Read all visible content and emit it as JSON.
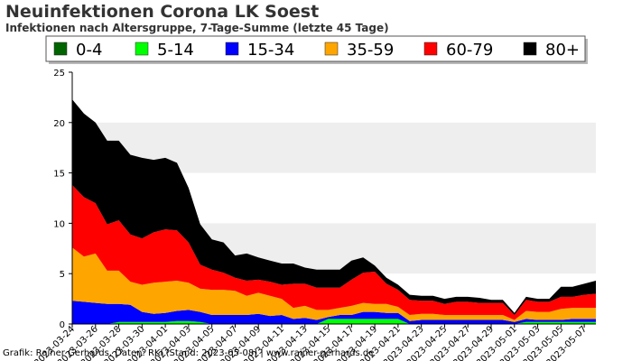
{
  "header": {
    "title": "Neuinfektionen Corona LK Soest",
    "subtitle": "Infektionen nach Altersgruppe, 7-Tage-Summe (letzte 45 Tage)"
  },
  "footer": {
    "credit": "Grafik: Rainer Gerhards, Daten: RKI (Stand: 2023-05-08) | www.rainer-gerhards.de"
  },
  "colors": {
    "0-4": "#006400",
    "5-14": "#00ff00",
    "15-34": "#0000ff",
    "35-59": "#ffa500",
    "60-79": "#ff0000",
    "80+": "#000000",
    "band": "#eeeeee"
  },
  "chart_data": {
    "type": "area",
    "stacked": true,
    "title": "Neuinfektionen Corona LK Soest",
    "subtitle": "Infektionen nach Altersgruppe, 7-Tage-Summe (letzte 45 Tage)",
    "xlabel": "",
    "ylabel": "",
    "ylim": [
      0,
      25
    ],
    "yticks": [
      0,
      5,
      10,
      15,
      20,
      25
    ],
    "grid": "alternating horizontal bands",
    "legend_position": "top",
    "x": [
      "2023-03-24",
      "2023-03-25",
      "2023-03-26",
      "2023-03-27",
      "2023-03-28",
      "2023-03-29",
      "2023-03-30",
      "2023-03-31",
      "2023-04-01",
      "2023-04-02",
      "2023-04-03",
      "2023-04-04",
      "2023-04-05",
      "2023-04-06",
      "2023-04-07",
      "2023-04-08",
      "2023-04-09",
      "2023-04-10",
      "2023-04-11",
      "2023-04-12",
      "2023-04-13",
      "2023-04-14",
      "2023-04-15",
      "2023-04-16",
      "2023-04-17",
      "2023-04-18",
      "2023-04-19",
      "2023-04-20",
      "2023-04-21",
      "2023-04-22",
      "2023-04-23",
      "2023-04-24",
      "2023-04-25",
      "2023-04-26",
      "2023-04-27",
      "2023-04-28",
      "2023-04-29",
      "2023-04-30",
      "2023-05-01",
      "2023-05-02",
      "2023-05-03",
      "2023-05-04",
      "2023-05-05",
      "2023-05-06",
      "2023-05-07",
      "2023-05-08"
    ],
    "xticks": [
      "2023-03-24",
      "2023-03-26",
      "2023-03-28",
      "2023-03-30",
      "2023-04-01",
      "2023-04-03",
      "2023-04-05",
      "2023-04-07",
      "2023-04-09",
      "2023-04-11",
      "2023-04-13",
      "2023-04-15",
      "2023-04-17",
      "2023-04-19",
      "2023-04-21",
      "2023-04-23",
      "2023-04-25",
      "2023-04-27",
      "2023-04-29",
      "2023-05-01",
      "2023-05-03",
      "2023-05-05",
      "2023-05-07"
    ],
    "series": [
      {
        "name": "0-4",
        "values": [
          0,
          0,
          0,
          0,
          0,
          0,
          0,
          0,
          0,
          0,
          0,
          0,
          0,
          0,
          0,
          0,
          0,
          0,
          0,
          0,
          0,
          0,
          0,
          0,
          0,
          0,
          0,
          0,
          0,
          0,
          0,
          0,
          0,
          0,
          0,
          0,
          0,
          0,
          0,
          0,
          0,
          0,
          0,
          0,
          0,
          0
        ]
      },
      {
        "name": "5-14",
        "values": [
          0,
          0,
          0,
          0,
          0.2,
          0.2,
          0.2,
          0.2,
          0.2,
          0.3,
          0.3,
          0.2,
          0,
          0,
          0,
          0,
          0,
          0,
          0,
          0,
          0,
          0,
          0.5,
          0.5,
          0.5,
          0.5,
          0.5,
          0.5,
          0.5,
          0,
          0,
          0,
          0,
          0,
          0,
          0,
          0,
          0,
          0,
          0.2,
          0.2,
          0.2,
          0.2,
          0.2,
          0.2,
          0.2
        ]
      },
      {
        "name": "15-34",
        "values": [
          2.3,
          2.2,
          2.1,
          2.0,
          1.8,
          1.7,
          1.0,
          0.8,
          0.9,
          1.0,
          1.1,
          1.0,
          0.9,
          0.9,
          0.9,
          0.9,
          1.0,
          0.8,
          0.9,
          0.5,
          0.6,
          0.4,
          0.2,
          0.4,
          0.4,
          0.7,
          0.7,
          0.6,
          0.6,
          0.3,
          0.4,
          0.4,
          0.4,
          0.4,
          0.4,
          0.4,
          0.4,
          0.4,
          0.2,
          0.3,
          0.2,
          0.2,
          0.2,
          0.3,
          0.3,
          0.3
        ]
      },
      {
        "name": "35-59",
        "values": [
          5.3,
          4.5,
          4.9,
          3.3,
          3.3,
          2.3,
          2.7,
          3.1,
          3.1,
          3.0,
          2.7,
          2.3,
          2.5,
          2.5,
          2.4,
          1.9,
          2.1,
          2.0,
          1.6,
          1.1,
          1.2,
          1.0,
          0.7,
          0.7,
          0.9,
          0.9,
          0.8,
          0.9,
          0.6,
          0.6,
          0.6,
          0.6,
          0.5,
          0.5,
          0.5,
          0.5,
          0.5,
          0.5,
          0.2,
          0.8,
          0.8,
          0.8,
          1.1,
          1.1,
          1.1,
          1.1
        ]
      },
      {
        "name": "60-79",
        "values": [
          6.2,
          5.9,
          5.0,
          4.6,
          5.0,
          4.7,
          4.6,
          5.0,
          5.2,
          5.0,
          4.0,
          2.4,
          2.0,
          1.7,
          1.3,
          1.5,
          1.3,
          1.4,
          1.4,
          2.4,
          2.2,
          2.2,
          2.2,
          2.0,
          2.6,
          3.0,
          3.2,
          2.0,
          1.7,
          1.5,
          1.3,
          1.3,
          1.1,
          1.3,
          1.3,
          1.2,
          1.2,
          1.2,
          0.5,
          1.1,
          1.0,
          1.0,
          1.2,
          1.1,
          1.3,
          1.4
        ]
      },
      {
        "name": "80+",
        "values": [
          8.5,
          8.3,
          8.0,
          8.3,
          7.9,
          7.9,
          8.0,
          7.2,
          7.1,
          6.7,
          5.4,
          4.0,
          3.0,
          3.0,
          2.2,
          2.7,
          2.2,
          2.1,
          2.1,
          2.0,
          1.6,
          1.8,
          1.8,
          1.8,
          1.9,
          1.5,
          0.6,
          0.6,
          0.5,
          0.5,
          0.5,
          0.5,
          0.5,
          0.5,
          0.5,
          0.5,
          0.3,
          0.3,
          0.2,
          0.3,
          0.3,
          0.3,
          1.0,
          1.0,
          1.1,
          1.3
        ]
      }
    ]
  }
}
